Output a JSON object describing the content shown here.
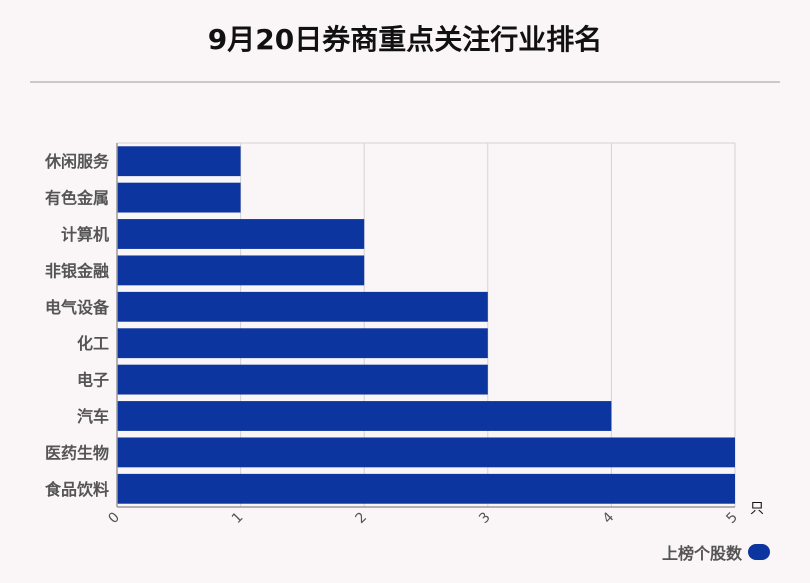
{
  "title": "9月20日券商重点关注行业排名",
  "unit": "只",
  "legend": {
    "label": "上榜个股数"
  },
  "colors": {
    "bar": "#0d35a0",
    "grid": "#d3d3d3",
    "axis": "#999999"
  },
  "chart_data": {
    "type": "bar",
    "orientation": "horizontal",
    "categories": [
      "休闲服务",
      "有色金属",
      "计算机",
      "非银金融",
      "电气设备",
      "化工",
      "电子",
      "汽车",
      "医药生物",
      "食品饮料"
    ],
    "series": [
      {
        "name": "上榜个股数",
        "values": [
          1,
          1,
          2,
          2,
          3,
          3,
          3,
          4,
          5,
          5
        ]
      }
    ],
    "xlim": [
      0,
      5
    ],
    "xticks": [
      "0",
      "1",
      "2",
      "3",
      "4",
      "5"
    ],
    "grid": true,
    "legend_position": "bottom-right"
  }
}
